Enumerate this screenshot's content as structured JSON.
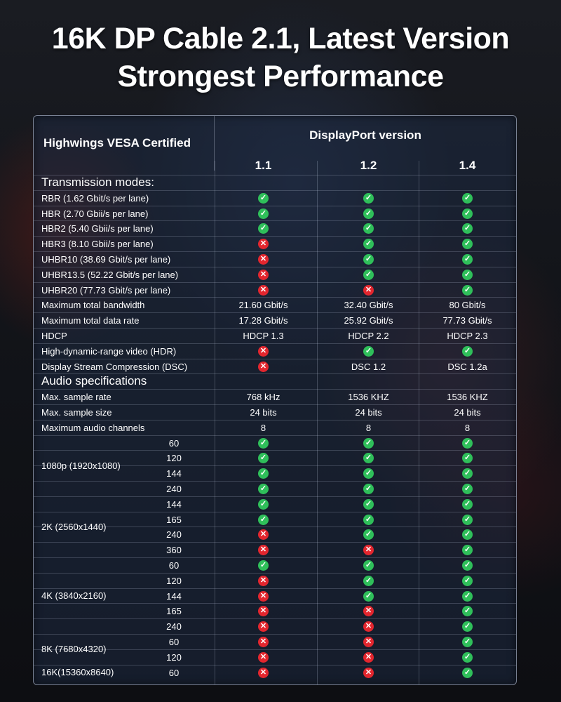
{
  "headline": {
    "line1": "16K DP Cable 2.1, Latest Version",
    "line2": "Strongest Performance"
  },
  "table": {
    "corner_label": "Highwings VESA Certified",
    "group_title": "DisplayPort version",
    "versions": [
      "1.1",
      "1.2",
      "1.4"
    ],
    "rows": [
      {
        "label": "Transmission modes:",
        "section": true
      },
      {
        "label": "RBR (1.62 Gbit/s per lane)",
        "cells": [
          "yes-icon",
          "yes-icon",
          "yes-icon"
        ]
      },
      {
        "label": "HBR (2.70 Gbii/s per lane)",
        "cells": [
          "yes-icon",
          "yes-icon",
          "yes-icon"
        ]
      },
      {
        "label": "HBR2 (5.40 Gbii/s per lane)",
        "cells": [
          "yes-icon",
          "yes-icon",
          "yes-icon"
        ]
      },
      {
        "label": "HBR3 (8.10 Gbii/s per lane)",
        "cells": [
          "no-icon",
          "yes-icon",
          "yes-icon"
        ]
      },
      {
        "label": "UHBR10 (38.69 Gbit/s per lane)",
        "cells": [
          "no-icon",
          "yes-icon",
          "yes-icon"
        ]
      },
      {
        "label": "UHBR13.5 (52.22 Gbit/s per lane)",
        "cells": [
          "no-icon",
          "yes-icon",
          "yes-icon"
        ]
      },
      {
        "label": "UHBR20 (77.73 Gbit/s per lane)",
        "cells": [
          "no-icon",
          "no-icon",
          "yes-icon"
        ]
      },
      {
        "label": "Maximum total bandwidth",
        "cells": [
          "21.60 Gbit/s",
          "32.40 Gbit/s",
          "80 Gbit/s"
        ]
      },
      {
        "label": "Maximum total data rate",
        "cells": [
          "17.28 Gbit/s",
          "25.92 Gbit/s",
          "77.73 Gbit/s"
        ]
      },
      {
        "label": "HDCP",
        "cells": [
          "HDCP 1.3",
          "HDCP 2.2",
          "HDCP 2.3"
        ]
      },
      {
        "label": "High-dynamic-range video (HDR)",
        "cells": [
          "no-icon",
          "yes-icon",
          "yes-icon"
        ]
      },
      {
        "label": "Display Stream Compression (DSC)",
        "cells": [
          "no-icon",
          "DSC 1.2",
          "DSC 1.2a"
        ]
      },
      {
        "label": "Audio specifications",
        "section": true
      },
      {
        "label": "Max. sample rate",
        "cells": [
          "768 kHz",
          "1536 KHZ",
          "1536 KHZ"
        ]
      },
      {
        "label": "Max. sample size",
        "cells": [
          "24 bits",
          "24 bits",
          "24 bits"
        ]
      },
      {
        "label": "Maximum audio channels",
        "cells": [
          "8",
          "8",
          "8"
        ]
      },
      {
        "sub": "60",
        "cells": [
          "yes-icon",
          "yes-icon",
          "yes-icon"
        ]
      },
      {
        "sub": "120",
        "cells": [
          "yes-icon",
          "yes-icon",
          "yes-icon"
        ]
      },
      {
        "sub": "144",
        "cells": [
          "yes-icon",
          "yes-icon",
          "yes-icon"
        ]
      },
      {
        "sub": "240",
        "cells": [
          "yes-icon",
          "yes-icon",
          "yes-icon"
        ]
      },
      {
        "sub": "144",
        "cells": [
          "yes-icon",
          "yes-icon",
          "yes-icon"
        ]
      },
      {
        "sub": "165",
        "cells": [
          "yes-icon",
          "yes-icon",
          "yes-icon"
        ]
      },
      {
        "sub": "240",
        "cells": [
          "no-icon",
          "yes-icon",
          "yes-icon"
        ]
      },
      {
        "sub": "360",
        "cells": [
          "no-icon",
          "no-icon",
          "yes-icon"
        ]
      },
      {
        "sub": "60",
        "cells": [
          "yes-icon",
          "yes-icon",
          "yes-icon"
        ]
      },
      {
        "sub": "120",
        "cells": [
          "no-icon",
          "yes-icon",
          "yes-icon"
        ]
      },
      {
        "sub": "144",
        "cells": [
          "no-icon",
          "yes-icon",
          "yes-icon"
        ]
      },
      {
        "sub": "165",
        "cells": [
          "no-icon",
          "no-icon",
          "yes-icon"
        ]
      },
      {
        "sub": "240",
        "cells": [
          "no-icon",
          "no-icon",
          "yes-icon"
        ]
      },
      {
        "sub": "60",
        "cells": [
          "no-icon",
          "no-icon",
          "yes-icon"
        ]
      },
      {
        "sub": "120",
        "cells": [
          "no-icon",
          "no-icon",
          "yes-icon"
        ]
      },
      {
        "sub": "60",
        "cells": [
          "no-icon",
          "no-icon",
          "yes-icon"
        ]
      }
    ],
    "groups": [
      {
        "label": "1080p (1920x1080)",
        "first_row": 17,
        "row_count": 4
      },
      {
        "label": "2K (2560x1440)",
        "first_row": 21,
        "row_count": 4
      },
      {
        "label": "4K (3840x2160)",
        "first_row": 25,
        "row_count": 5
      },
      {
        "label": "8K (7680x4320)",
        "first_row": 30,
        "row_count": 2
      },
      {
        "label": "16K(15360x8640)",
        "first_row": 32,
        "row_count": 1
      }
    ]
  },
  "colors": {
    "yes": "#2fbf5a",
    "no": "#e3262e"
  }
}
